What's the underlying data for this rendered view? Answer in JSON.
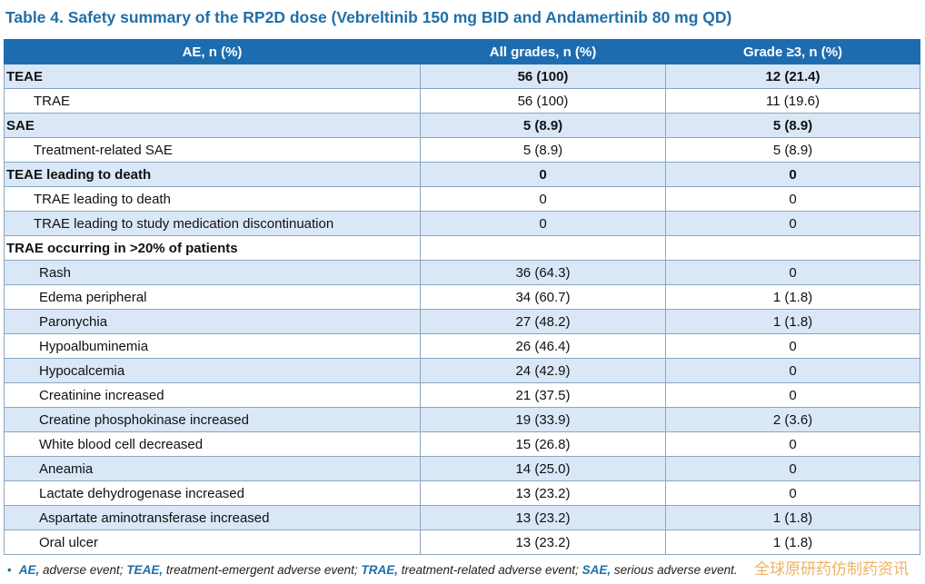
{
  "title": "Table 4. Safety summary of the RP2D dose (Vebreltinib 150 mg BID and Andamertinib 80 mg QD)",
  "headers": [
    "AE, n (%)",
    "All grades, n (%)",
    "Grade ≥3, n (%)"
  ],
  "rows": [
    {
      "label": "TEAE",
      "all": "56 (100)",
      "g3": "12 (21.4)",
      "bold": true,
      "level": 0,
      "shade": true
    },
    {
      "label": "TRAE",
      "all": "56 (100)",
      "g3": "11 (19.6)",
      "bold": false,
      "level": 1,
      "shade": false
    },
    {
      "label": "SAE",
      "all": "5 (8.9)",
      "g3": "5 (8.9)",
      "bold": true,
      "level": 0,
      "shade": true
    },
    {
      "label": "Treatment-related SAE",
      "all": "5 (8.9)",
      "g3": "5 (8.9)",
      "bold": false,
      "level": 1,
      "shade": false
    },
    {
      "label": "TEAE leading to death",
      "all": "0",
      "g3": "0",
      "bold": true,
      "level": 0,
      "shade": true
    },
    {
      "label": "TRAE leading to death",
      "all": "0",
      "g3": "0",
      "bold": false,
      "level": 1,
      "shade": false
    },
    {
      "label": "TRAE leading to study medication discontinuation",
      "all": "0",
      "g3": "0",
      "bold": false,
      "level": 1,
      "shade": true
    },
    {
      "label": "TRAE occurring in >20% of patients",
      "all": "",
      "g3": "",
      "bold": true,
      "level": 0,
      "shade": false
    },
    {
      "label": "Rash",
      "all": "36 (64.3)",
      "g3": "0",
      "bold": false,
      "level": 2,
      "shade": true
    },
    {
      "label": "Edema peripheral",
      "all": "34 (60.7)",
      "g3": "1 (1.8)",
      "bold": false,
      "level": 2,
      "shade": false
    },
    {
      "label": "Paronychia",
      "all": "27 (48.2)",
      "g3": "1 (1.8)",
      "bold": false,
      "level": 2,
      "shade": true
    },
    {
      "label": "Hypoalbuminemia",
      "all": "26 (46.4)",
      "g3": "0",
      "bold": false,
      "level": 2,
      "shade": false
    },
    {
      "label": "Hypocalcemia",
      "all": "24 (42.9)",
      "g3": "0",
      "bold": false,
      "level": 2,
      "shade": true
    },
    {
      "label": "Creatinine increased",
      "all": "21 (37.5)",
      "g3": "0",
      "bold": false,
      "level": 2,
      "shade": false
    },
    {
      "label": "Creatine phosphokinase increased",
      "all": "19 (33.9)",
      "g3": "2 (3.6)",
      "bold": false,
      "level": 2,
      "shade": true
    },
    {
      "label": "White blood cell decreased",
      "all": "15 (26.8)",
      "g3": "0",
      "bold": false,
      "level": 2,
      "shade": false
    },
    {
      "label": "Aneamia",
      "all": "14 (25.0)",
      "g3": "0",
      "bold": false,
      "level": 2,
      "shade": true
    },
    {
      "label": "Lactate dehydrogenase increased",
      "all": "13 (23.2)",
      "g3": "0",
      "bold": false,
      "level": 2,
      "shade": false
    },
    {
      "label": "Aspartate aminotransferase increased",
      "all": "13 (23.2)",
      "g3": "1 (1.8)",
      "bold": false,
      "level": 2,
      "shade": true
    },
    {
      "label": "Oral ulcer",
      "all": "13 (23.2)",
      "g3": "1 (1.8)",
      "bold": false,
      "level": 2,
      "shade": false
    }
  ],
  "footnote": [
    {
      "abbr": "AE,",
      "text": " adverse event; "
    },
    {
      "abbr": "TEAE,",
      "text": " treatment-emergent adverse event; "
    },
    {
      "abbr": "TRAE,",
      "text": " treatment-related adverse event; "
    },
    {
      "abbr": "SAE,",
      "text": " serious adverse event."
    }
  ],
  "footnote_bullet": "•",
  "watermark": "全球原研药仿制药资讯",
  "colors": {
    "title": "#1f6fa8",
    "header_bg": "#1e6cb0",
    "row_shade": "#d9e7f6",
    "watermark": "#e8a64a"
  }
}
